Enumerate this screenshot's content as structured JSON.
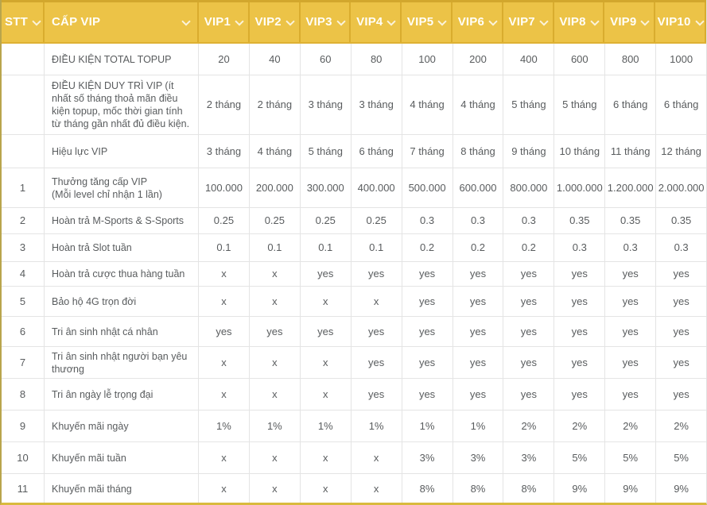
{
  "colors": {
    "header_gold": "#ecc347",
    "header_divider": "#d9ac2e",
    "header_text": "#ffffff",
    "body_text": "#595c5e",
    "grid_line": "#e4e4e4",
    "outer_gold_border": "#d9ba3e"
  },
  "table": {
    "header": {
      "stt": "STT",
      "cap_vip": "CẤP VIP",
      "sort_icon": "chevron-down-icon",
      "vips": [
        "VIP1",
        "VIP2",
        "VIP3",
        "VIP4",
        "VIP5",
        "VIP6",
        "VIP7",
        "VIP8",
        "VIP9",
        "VIP10"
      ]
    },
    "rows": [
      {
        "stt": "",
        "label": "ĐIỀU KIỆN TOTAL TOPUP",
        "values": [
          "20",
          "40",
          "60",
          "80",
          "100",
          "200",
          "400",
          "600",
          "800",
          "1000"
        ]
      },
      {
        "stt": "",
        "label": "ĐIỀU KIỆN DUY TRÌ VIP (ít nhất số tháng thoả mãn điều kiện topup, mốc thời gian tính từ tháng gần nhất đủ điều kiện.",
        "values": [
          "2 tháng",
          "2 tháng",
          "3 tháng",
          "3 tháng",
          "4 tháng",
          "4 tháng",
          "5 tháng",
          "5 tháng",
          "6 tháng",
          "6 tháng"
        ]
      },
      {
        "stt": "",
        "label": "Hiệu lực VIP",
        "values": [
          "3 tháng",
          "4 tháng",
          "5 tháng",
          "6 tháng",
          "7 tháng",
          "8 tháng",
          "9 tháng",
          "10 tháng",
          "11 tháng",
          "12 tháng"
        ]
      },
      {
        "stt": "1",
        "label": "Thưởng tăng cấp VIP\n(Mỗi level chỉ nhận 1 lần)",
        "values": [
          "100.000",
          "200.000",
          "300.000",
          "400.000",
          "500.000",
          "600.000",
          "800.000",
          "1.000.000",
          "1.200.000",
          "2.000.000"
        ]
      },
      {
        "stt": "2",
        "label": "Hoàn trả M-Sports & S-Sports",
        "values": [
          "0.25",
          "0.25",
          "0.25",
          "0.25",
          "0.3",
          "0.3",
          "0.3",
          "0.35",
          "0.35",
          "0.35"
        ]
      },
      {
        "stt": "3",
        "label": "Hoàn trả Slot tuần",
        "values": [
          "0.1",
          "0.1",
          "0.1",
          "0.1",
          "0.2",
          "0.2",
          "0.2",
          "0.3",
          "0.3",
          "0.3"
        ]
      },
      {
        "stt": "4",
        "label": "Hoàn trả cược thua hàng tuần",
        "values": [
          "x",
          "x",
          "yes",
          "yes",
          "yes",
          "yes",
          "yes",
          "yes",
          "yes",
          "yes"
        ]
      },
      {
        "stt": "5",
        "label": "Bảo hộ 4G trọn đời",
        "values": [
          "x",
          "x",
          "x",
          "x",
          "yes",
          "yes",
          "yes",
          "yes",
          "yes",
          "yes"
        ]
      },
      {
        "stt": "6",
        "label": "Tri ân sinh nhật cá nhân",
        "values": [
          "yes",
          "yes",
          "yes",
          "yes",
          "yes",
          "yes",
          "yes",
          "yes",
          "yes",
          "yes"
        ]
      },
      {
        "stt": "7",
        "label": "Tri ân sinh nhật người bạn yêu thương",
        "values": [
          "x",
          "x",
          "x",
          "yes",
          "yes",
          "yes",
          "yes",
          "yes",
          "yes",
          "yes"
        ]
      },
      {
        "stt": "8",
        "label": "Tri ân ngày lễ trọng đại",
        "values": [
          "x",
          "x",
          "x",
          "yes",
          "yes",
          "yes",
          "yes",
          "yes",
          "yes",
          "yes"
        ]
      },
      {
        "stt": "9",
        "label": "Khuyến mãi ngày",
        "values": [
          "1%",
          "1%",
          "1%",
          "1%",
          "1%",
          "1%",
          "2%",
          "2%",
          "2%",
          "2%"
        ]
      },
      {
        "stt": "10",
        "label": "Khuyến mãi tuần",
        "values": [
          "x",
          "x",
          "x",
          "x",
          "3%",
          "3%",
          "3%",
          "5%",
          "5%",
          "5%"
        ]
      },
      {
        "stt": "11",
        "label": "Khuyến mãi tháng",
        "values": [
          "x",
          "x",
          "x",
          "x",
          "8%",
          "8%",
          "8%",
          "9%",
          "9%",
          "9%"
        ]
      }
    ]
  }
}
